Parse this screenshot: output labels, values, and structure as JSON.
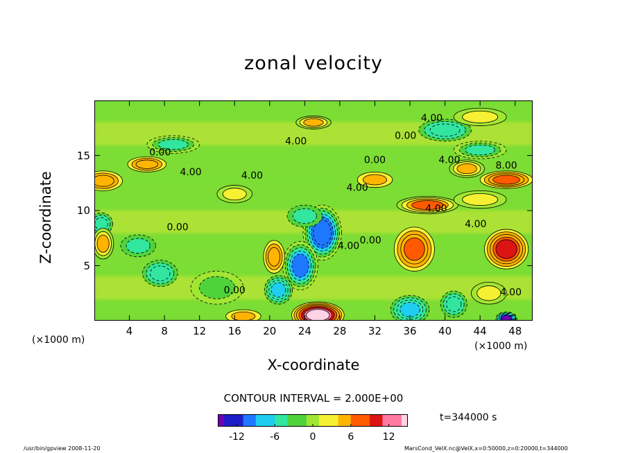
{
  "chart_data": {
    "type": "heatmap",
    "title": "zonal velocity",
    "xlabel": "X-coordinate",
    "ylabel": "Z-coordinate",
    "x_unit_left": "(×1000 m)",
    "x_unit_right": "(×1000 m)",
    "xlim": [
      0,
      50
    ],
    "ylim": [
      0,
      20
    ],
    "x_ticks": [
      "4",
      "8",
      "12",
      "16",
      "20",
      "24",
      "28",
      "32",
      "36",
      "40",
      "44",
      "48"
    ],
    "x_tick_values": [
      4,
      8,
      12,
      16,
      20,
      24,
      28,
      32,
      36,
      40,
      44,
      48
    ],
    "y_ticks": [
      "5",
      "10",
      "15"
    ],
    "y_tick_values": [
      5,
      10,
      15
    ],
    "contour_interval_text": "CONTOUR INTERVAL = 2.000E+00",
    "contour_labels": [
      {
        "text": "4.00",
        "x": 38.5,
        "y": 18.1
      },
      {
        "text": "4.00",
        "x": 23.0,
        "y": 16.0
      },
      {
        "text": "0.00",
        "x": 35.5,
        "y": 16.5
      },
      {
        "text": "0.00",
        "x": 7.5,
        "y": 15.0
      },
      {
        "text": "0.00",
        "x": 32.0,
        "y": 14.3
      },
      {
        "text": "4.00",
        "x": 40.5,
        "y": 14.3
      },
      {
        "text": "8.00",
        "x": 47.0,
        "y": 13.8
      },
      {
        "text": "4.00",
        "x": 11.0,
        "y": 13.2
      },
      {
        "text": "4.00",
        "x": 18.0,
        "y": 12.9
      },
      {
        "text": "4.00",
        "x": 30.0,
        "y": 11.8
      },
      {
        "text": "4.00",
        "x": 39.0,
        "y": 9.9
      },
      {
        "text": "0.00",
        "x": 9.5,
        "y": 8.2
      },
      {
        "text": "4.00",
        "x": 43.5,
        "y": 8.5
      },
      {
        "text": "0.00",
        "x": 31.5,
        "y": 7.0
      },
      {
        "text": "4.00",
        "x": 29.0,
        "y": 6.5
      },
      {
        "text": "0.00",
        "x": 16.0,
        "y": 2.5
      },
      {
        "text": "4.00",
        "x": 47.5,
        "y": 2.3
      }
    ],
    "features": [
      {
        "value": -11,
        "x": 26.0,
        "y": 8.0,
        "sx": 2.2,
        "sy": 2.5
      },
      {
        "value": -9,
        "x": 23.5,
        "y": 5.0,
        "sx": 2.0,
        "sy": 2.2
      },
      {
        "value": -8,
        "x": 21.0,
        "y": 2.8,
        "sx": 1.6,
        "sy": 1.3
      },
      {
        "value": -6,
        "x": 7.5,
        "y": 4.3,
        "sx": 2.0,
        "sy": 1.2
      },
      {
        "value": -6,
        "x": 0.8,
        "y": 8.8,
        "sx": 1.3,
        "sy": 1.0
      },
      {
        "value": -8,
        "x": 36.0,
        "y": 1.0,
        "sx": 2.2,
        "sy": 1.3
      },
      {
        "value": -6,
        "x": 41.0,
        "y": 1.5,
        "sx": 1.5,
        "sy": 1.2
      },
      {
        "value": -6,
        "x": 40.0,
        "y": 17.3,
        "sx": 3.0,
        "sy": 1.0
      },
      {
        "value": -5,
        "x": 9.0,
        "y": 16.0,
        "sx": 3.0,
        "sy": 0.8
      },
      {
        "value": -5,
        "x": 44.0,
        "y": 15.5,
        "sx": 3.0,
        "sy": 0.8
      },
      {
        "value": -4,
        "x": 24.0,
        "y": 9.5,
        "sx": 2.0,
        "sy": 1.0
      },
      {
        "value": -4,
        "x": 5.0,
        "y": 6.8,
        "sx": 2.0,
        "sy": 1.0
      },
      {
        "value": 14,
        "x": 25.5,
        "y": 0.5,
        "sx": 3.0,
        "sy": 1.2
      },
      {
        "value": 10,
        "x": 47.0,
        "y": 6.5,
        "sx": 2.5,
        "sy": 1.8
      },
      {
        "value": 8,
        "x": 36.5,
        "y": 6.5,
        "sx": 2.3,
        "sy": 2.0
      },
      {
        "value": 8,
        "x": 47.0,
        "y": 12.8,
        "sx": 3.0,
        "sy": 0.8
      },
      {
        "value": 7,
        "x": 38.0,
        "y": 10.5,
        "sx": 3.5,
        "sy": 0.8
      },
      {
        "value": 6,
        "x": 1.0,
        "y": 12.7,
        "sx": 2.2,
        "sy": 0.9
      },
      {
        "value": 5,
        "x": 1.0,
        "y": 7.0,
        "sx": 1.2,
        "sy": 1.4
      },
      {
        "value": 6,
        "x": 20.5,
        "y": 5.8,
        "sx": 1.2,
        "sy": 1.5
      },
      {
        "value": 5,
        "x": 25.0,
        "y": 18.0,
        "sx": 2.0,
        "sy": 0.6
      },
      {
        "value": 5,
        "x": 42.5,
        "y": 13.8,
        "sx": 2.0,
        "sy": 0.8
      },
      {
        "value": 6,
        "x": 6.0,
        "y": 14.2,
        "sx": 2.2,
        "sy": 0.7
      },
      {
        "value": 4,
        "x": 32.0,
        "y": 12.8,
        "sx": 2.0,
        "sy": 0.7
      },
      {
        "value": 3,
        "x": 16.0,
        "y": 11.5,
        "sx": 2.0,
        "sy": 0.8
      },
      {
        "value": 3,
        "x": 44.0,
        "y": 11.0,
        "sx": 3.0,
        "sy": 0.8
      },
      {
        "value": 4,
        "x": 17.0,
        "y": 0.4,
        "sx": 2.0,
        "sy": 0.6
      },
      {
        "value": 3,
        "x": 45.0,
        "y": 2.5,
        "sx": 2.0,
        "sy": 1.0
      },
      {
        "value": -14,
        "x": 47.0,
        "y": 0.2,
        "sx": 1.2,
        "sy": 0.6
      },
      {
        "value": 3,
        "x": 44.0,
        "y": 18.5,
        "sx": 3.0,
        "sy": 0.8
      },
      {
        "value": -3,
        "x": 14.0,
        "y": 3.0,
        "sx": 3.0,
        "sy": 1.5
      }
    ],
    "colorbar": {
      "range": [
        -15,
        15
      ],
      "ticks": [
        "-12",
        "-6",
        "0",
        "6",
        "12"
      ],
      "tick_values": [
        -12,
        -6,
        0,
        6,
        12
      ],
      "stops": [
        "#6e00b4",
        "#1e1ec8",
        "#1e78ff",
        "#1ecdf0",
        "#32e6a0",
        "#50d23c",
        "#a0e632",
        "#f5f032",
        "#ffb400",
        "#ff5a00",
        "#dc1414",
        "#ff78a0",
        "#ffd2e6"
      ]
    }
  },
  "annotations": {
    "time": "t=344000 s",
    "footer_left": "/usr/bin/gpview  2008-11-20",
    "footer_right": "MarsCond_VelX.nc@VelX,x=0:50000,z=0:20000,t=344000"
  }
}
